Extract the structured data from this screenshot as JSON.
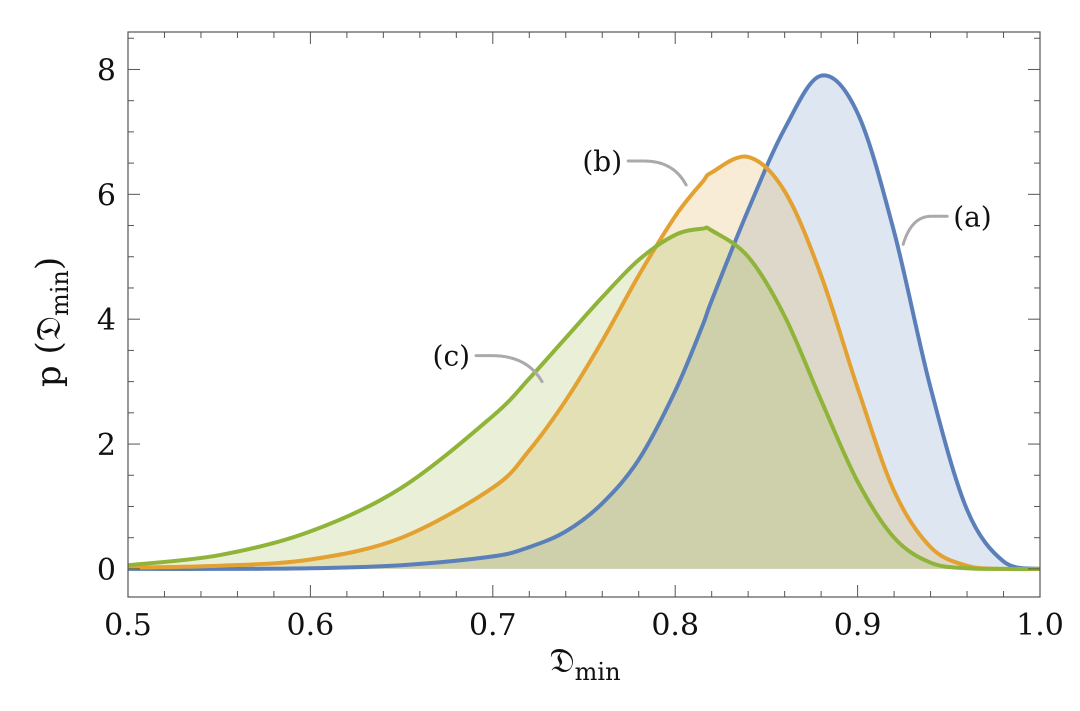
{
  "chart_data": {
    "type": "area",
    "title": "",
    "xlabel": "𝔇",
    "xlabel_sub": "min",
    "ylabel_prefix": "p (",
    "ylabel_main": "𝔇",
    "ylabel_sub": "min",
    "ylabel_suffix": ")",
    "xlim": [
      0.5,
      1.0
    ],
    "ylim": [
      0,
      8.6
    ],
    "x_ticks": [
      0.5,
      0.6,
      0.7,
      0.8,
      0.9,
      1.0
    ],
    "x_tick_labels": [
      "0.5",
      "0.6",
      "0.7",
      "0.8",
      "0.9",
      "1.0"
    ],
    "y_ticks": [
      0,
      2,
      4,
      6,
      8
    ],
    "y_tick_labels": [
      "0",
      "2",
      "4",
      "6",
      "8"
    ],
    "grid": false,
    "x": [
      0.5,
      0.55,
      0.6,
      0.65,
      0.7,
      0.72,
      0.74,
      0.76,
      0.78,
      0.8,
      0.815,
      0.82,
      0.84,
      0.86,
      0.88,
      0.9,
      0.92,
      0.94,
      0.96,
      0.98,
      1.0
    ],
    "series": [
      {
        "name": "(a)",
        "color": "#5b80b9",
        "fill": "#5b80b9",
        "values": [
          0.0,
          0.0,
          0.01,
          0.06,
          0.2,
          0.35,
          0.6,
          1.05,
          1.75,
          2.85,
          3.9,
          4.3,
          5.75,
          7.05,
          7.9,
          7.3,
          5.4,
          2.9,
          0.95,
          0.12,
          0.0
        ]
      },
      {
        "name": "(b)",
        "color": "#e3a131",
        "fill": "#e3a131",
        "values": [
          0.02,
          0.05,
          0.15,
          0.5,
          1.3,
          1.9,
          2.7,
          3.65,
          4.7,
          5.65,
          6.2,
          6.35,
          6.6,
          6.05,
          4.7,
          2.9,
          1.25,
          0.35,
          0.05,
          0.0,
          0.0
        ]
      },
      {
        "name": "(c)",
        "color": "#8fb439",
        "fill": "#8fb439",
        "values": [
          0.06,
          0.22,
          0.6,
          1.3,
          2.45,
          3.05,
          3.7,
          4.35,
          4.95,
          5.35,
          5.45,
          5.42,
          5.0,
          4.05,
          2.7,
          1.4,
          0.5,
          0.1,
          0.01,
          0.0,
          0.0
        ]
      }
    ],
    "annotations": [
      {
        "label": "(a)",
        "series": "(a)",
        "x": 0.925,
        "y": 5.2
      },
      {
        "label": "(b)",
        "series": "(b)",
        "x": 0.806,
        "y": 6.15
      },
      {
        "label": "(c)",
        "series": "(c)",
        "x": 0.727,
        "y": 3.0
      }
    ]
  }
}
